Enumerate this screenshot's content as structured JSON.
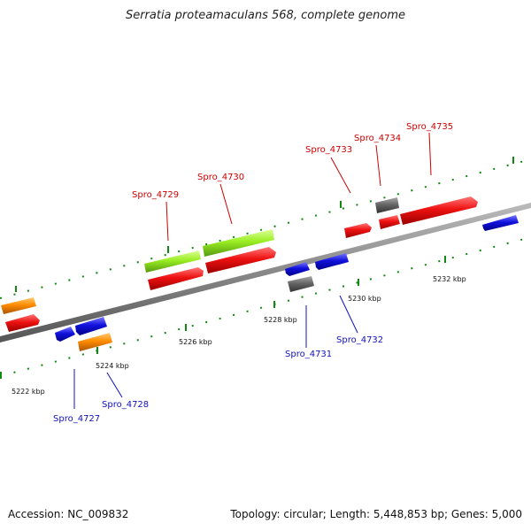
{
  "title": "Serratia proteamaculans 568, complete genome",
  "footer": {
    "accession": "Accession: NC_009832",
    "summary": "Topology: circular; Length: 5,448,853 bp; Genes: 5,000"
  },
  "scale_labels": [
    "5222 kbp",
    "5224 kbp",
    "5226 kbp",
    "5228 kbp",
    "5230 kbp",
    "5232 kbp"
  ],
  "gene_labels": [
    "Spro_4727",
    "Spro_4728",
    "Spro_4729",
    "Spro_4730",
    "Spro_4731",
    "Spro_4732",
    "Spro_4733",
    "Spro_4734",
    "Spro_4735"
  ],
  "colors": {
    "cds": "#ee1111",
    "forward_label": "#cc0000",
    "reverse_label": "#1111bb",
    "reverse_gene": "#1111dd",
    "rna": "#ff8c00",
    "highlight": "#99ee22",
    "pseudo": "#666666",
    "backbone": "#888888",
    "tick": "#118811"
  }
}
